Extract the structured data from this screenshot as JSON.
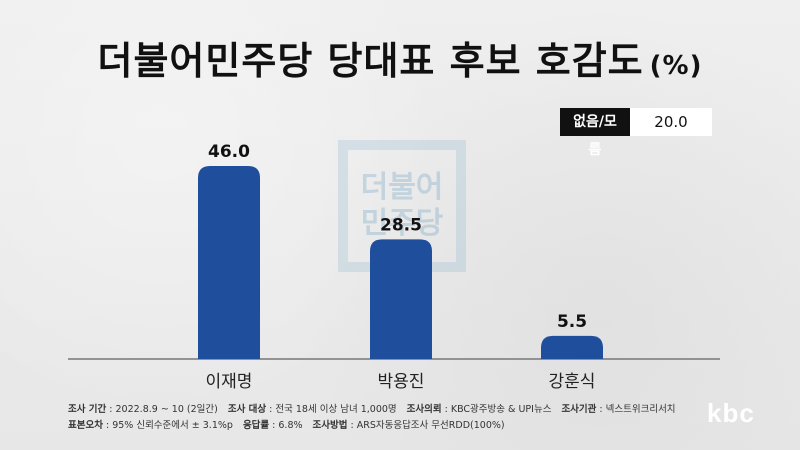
{
  "title": "더불어민주당 당대표 후보 호감도",
  "title_unit": "(%)",
  "dont_know": {
    "label": "없음/모름",
    "value": "20.0"
  },
  "watermark_text": [
    "더불어",
    "민주당"
  ],
  "chart_data": {
    "type": "bar",
    "categories": [
      "이재명",
      "박용진",
      "강훈식"
    ],
    "values": [
      46.0,
      28.5,
      5.5
    ],
    "value_labels": [
      "46.0",
      "28.5",
      "5.5"
    ],
    "ylim": [
      0,
      50
    ],
    "bar_color": "#1f4e9c"
  },
  "footer": {
    "line1": [
      {
        "k": "조사 기간",
        "v": ": 2022.8.9 ~ 10 (2일간)"
      },
      {
        "k": "조사 대상",
        "v": ": 전국 18세 이상 남녀 1,000명"
      },
      {
        "k": "조사의뢰",
        "v": ": KBC광주방송 & UPI뉴스"
      },
      {
        "k": "조사기관",
        "v": ": 넥스트위크리서치"
      }
    ],
    "line2": [
      {
        "k": "표본오차",
        "v": ": 95% 신뢰수준에서 ± 3.1%p"
      },
      {
        "k": "응답률",
        "v": ": 6.8%"
      },
      {
        "k": "조사방법",
        "v": ": ARS자동응답조사 무선RDD(100%)"
      }
    ]
  },
  "logo": "kbc"
}
